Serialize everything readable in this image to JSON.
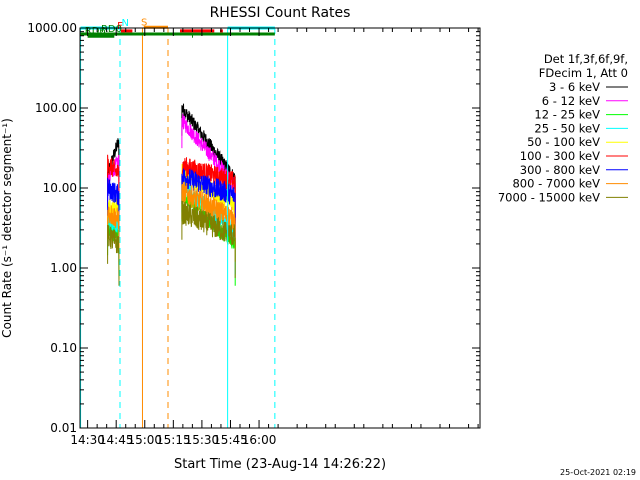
{
  "chart_data": {
    "type": "line",
    "title": "RHESSI Count Rates",
    "xlabel": "Start Time (23-Aug-14 14:26:22)",
    "ylabel": "Count Rate (s⁻¹ detector segment⁻¹)",
    "ylog": true,
    "ylim": [
      0.01,
      1000
    ],
    "yticks": [
      "0.01",
      "0.10",
      "1.00",
      "10.00",
      "100.00",
      "1000.00"
    ],
    "xlim_min": [
      866,
      1076
    ],
    "xticks": [
      {
        "label": "14:30",
        "min": 870
      },
      {
        "label": "14:45",
        "min": 885
      },
      {
        "label": "15:00",
        "min": 900
      },
      {
        "label": "15:15",
        "min": 915
      },
      {
        "label": "15:30",
        "min": 930
      },
      {
        "label": "15:45",
        "min": 945
      },
      {
        "label": "16:00",
        "min": 960
      }
    ],
    "legend_header": [
      "Det 1f,3f,6f,9f,",
      "FDecim 1, Att 0"
    ],
    "series": [
      {
        "name": "3 - 6 keV",
        "color": "#000000",
        "seg1": [
          15,
          40
        ],
        "seg2": [
          100,
          13
        ]
      },
      {
        "name": "6 - 12 keV",
        "color": "#ff00ff",
        "seg1": [
          13,
          22
        ],
        "seg2": [
          70,
          11
        ]
      },
      {
        "name": "12 - 25 keV",
        "color": "#00ff00",
        "seg1": [
          3.2,
          2.4
        ],
        "seg2": [
          8.5,
          2.0
        ]
      },
      {
        "name": "25 - 50 keV",
        "color": "#00ffff",
        "seg1": [
          4.0,
          3.4
        ],
        "seg2": [
          11,
          2.8
        ]
      },
      {
        "name": "50 - 100 keV",
        "color": "#ffff00",
        "seg1": [
          5.5,
          6.0
        ],
        "seg2": [
          16,
          6.0
        ]
      },
      {
        "name": "100 - 300 keV",
        "color": "#ff0000",
        "seg1": [
          20,
          15
        ],
        "seg2": [
          19,
          12
        ]
      },
      {
        "name": "300 - 800 keV",
        "color": "#0000ff",
        "seg1": [
          10,
          8
        ],
        "seg2": [
          14,
          8
        ]
      },
      {
        "name": "800 - 7000 keV",
        "color": "#ff8c00",
        "seg1": [
          5,
          4
        ],
        "seg2": [
          9,
          4
        ]
      },
      {
        "name": "7000 - 15000 keV",
        "color": "#808000",
        "seg1": [
          2.5,
          2.0
        ],
        "seg2": [
          5,
          2.5
        ]
      }
    ],
    "segments_min": [
      [
        880.5,
        886.5
      ],
      [
        919.5,
        947.5
      ]
    ],
    "vlines": [
      {
        "min": 866.3,
        "color": "#00ffff",
        "dash": false
      },
      {
        "min": 887.0,
        "color": "#00ffff",
        "dash": true
      },
      {
        "min": 898.8,
        "color": "#ff8c00",
        "dash": false
      },
      {
        "min": 912.2,
        "color": "#ff8c00",
        "dash": true
      },
      {
        "min": 943.5,
        "color": "#00ffff",
        "dash": false
      },
      {
        "min": 968.3,
        "color": "#00ffff",
        "dash": true
      }
    ],
    "flags": [
      {
        "label": "N",
        "color": "#00ffff",
        "y": 1000,
        "labelAt": 887.8,
        "bars": [
          [
            866.3,
            887.0
          ],
          [
            943.5,
            968.3
          ]
        ]
      },
      {
        "label": "S",
        "color": "#ff8c00",
        "y": 1020,
        "labelAt": 898.0,
        "bars": [
          [
            899.5,
            912.2
          ]
        ]
      },
      {
        "label": "F",
        "color": "#ff0000",
        "y": 920,
        "labelAt": 885.5,
        "bars": [
          [
            887.5,
            893.5
          ],
          [
            918.5,
            936.5
          ],
          [
            939.5,
            941.0
          ]
        ]
      },
      {
        "label": "RD0",
        "color": "#008000",
        "y": 840,
        "labelAt": 877.0,
        "bars": [
          [
            866.3,
            968.3
          ]
        ]
      },
      {
        "label": "RD6",
        "color": "#008000",
        "y": 790,
        "labelAt": 868.5,
        "bars": [
          [
            870.0,
            884.0
          ],
          [
            924.8,
            925.3
          ]
        ]
      }
    ],
    "footer": "25-Oct-2021 02:19"
  }
}
